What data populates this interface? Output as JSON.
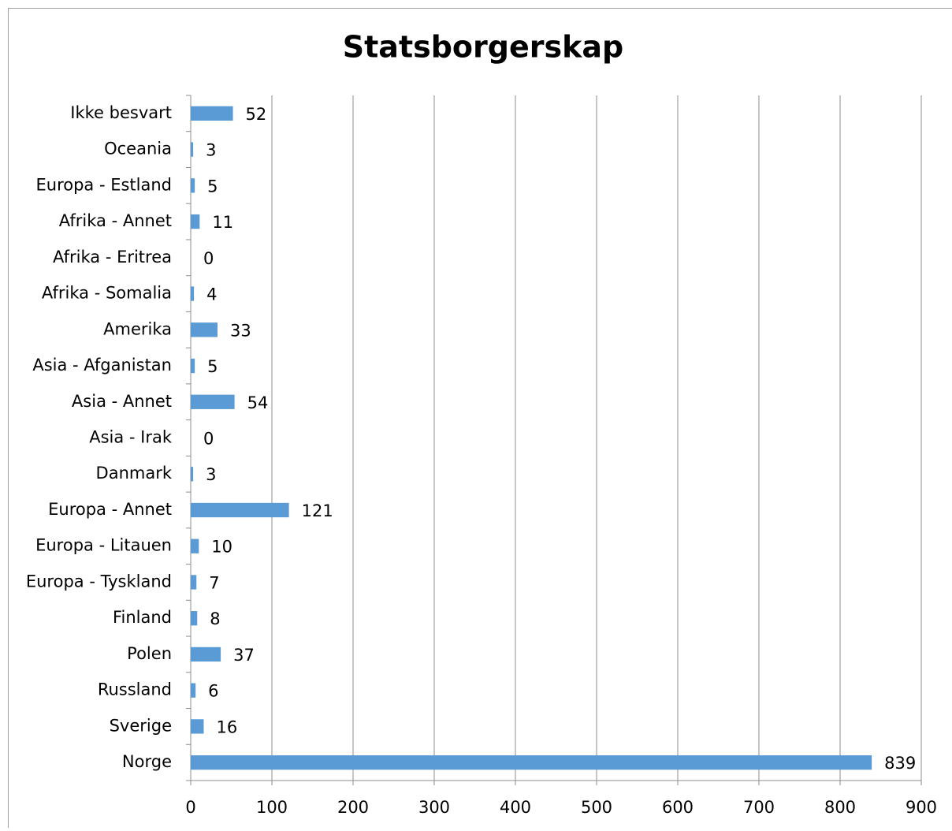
{
  "chart_data": {
    "type": "bar",
    "orientation": "horizontal",
    "title": "Statsborgerskap",
    "categories": [
      "Ikke besvart",
      "Oceania",
      "Europa - Estland",
      "Afrika - Annet",
      "Afrika - Eritrea",
      "Afrika - Somalia",
      "Amerika",
      "Asia - Afganistan",
      "Asia - Annet",
      "Asia - Irak",
      "Danmark",
      "Europa - Annet",
      "Europa - Litauen",
      "Europa - Tyskland",
      "Finland",
      "Polen",
      "Russland",
      "Sverige",
      "Norge"
    ],
    "values": [
      52,
      3,
      5,
      11,
      0,
      4,
      33,
      5,
      54,
      0,
      3,
      121,
      10,
      7,
      8,
      37,
      6,
      16,
      839
    ],
    "color": "#5b9bd5",
    "xlim": [
      0,
      900
    ],
    "xticks": [
      0,
      100,
      200,
      300,
      400,
      500,
      600,
      700,
      800,
      900
    ],
    "grid": true
  }
}
